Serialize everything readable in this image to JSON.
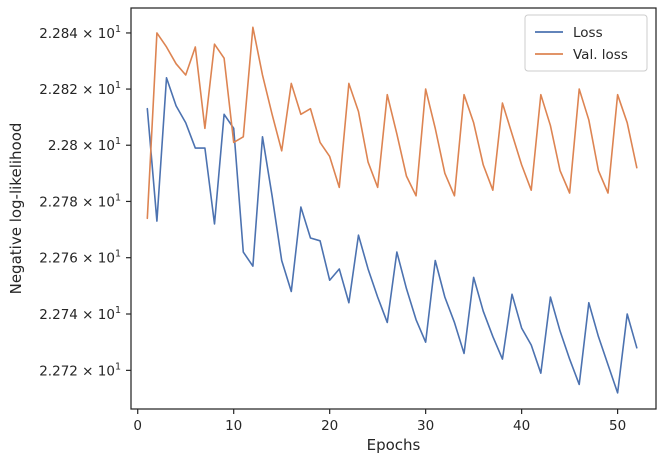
{
  "chart_data": {
    "type": "line",
    "title": "",
    "xlabel": "Epochs",
    "ylabel": "Negative log-likelihood",
    "xlim": [
      -0.7,
      54.0
    ],
    "ylim": [
      22.7063,
      22.8489
    ],
    "log_y": true,
    "x_ticks": [
      {
        "value": 0,
        "label": "0"
      },
      {
        "value": 10,
        "label": "10"
      },
      {
        "value": 20,
        "label": "20"
      },
      {
        "value": 30,
        "label": "30"
      },
      {
        "value": 40,
        "label": "40"
      },
      {
        "value": 50,
        "label": "50"
      }
    ],
    "y_ticks": [
      {
        "value": 22.72,
        "mant": "2.272",
        "exp": "1"
      },
      {
        "value": 22.74,
        "mant": "2.274",
        "exp": "1"
      },
      {
        "value": 22.76,
        "mant": "2.276",
        "exp": "1"
      },
      {
        "value": 22.78,
        "mant": "2.278",
        "exp": "1"
      },
      {
        "value": 22.8,
        "mant": "2.28",
        "exp": "1"
      },
      {
        "value": 22.82,
        "mant": "2.282",
        "exp": "1"
      },
      {
        "value": 22.84,
        "mant": "2.284",
        "exp": "1"
      }
    ],
    "x": [
      1,
      2,
      3,
      4,
      5,
      6,
      7,
      8,
      9,
      10,
      11,
      12,
      13,
      14,
      15,
      16,
      17,
      18,
      19,
      20,
      21,
      22,
      23,
      24,
      25,
      26,
      27,
      28,
      29,
      30,
      31,
      32,
      33,
      34,
      35,
      36,
      37,
      38,
      39,
      40,
      41,
      42,
      43,
      44,
      45,
      46,
      47,
      48,
      49,
      50,
      51,
      52
    ],
    "series": [
      {
        "name": "Loss",
        "color": "#4c72b0",
        "values": [
          22.813,
          22.773,
          22.824,
          22.814,
          22.808,
          22.799,
          22.799,
          22.772,
          22.811,
          22.806,
          22.762,
          22.757,
          22.803,
          22.782,
          22.759,
          22.748,
          22.778,
          22.767,
          22.766,
          22.752,
          22.756,
          22.744,
          22.768,
          22.756,
          22.746,
          22.737,
          22.762,
          22.749,
          22.738,
          22.73,
          22.759,
          22.746,
          22.737,
          22.726,
          22.753,
          22.741,
          22.732,
          22.724,
          22.747,
          22.735,
          22.729,
          22.719,
          22.746,
          22.734,
          22.724,
          22.715,
          22.744,
          22.732,
          22.722,
          22.712,
          22.74,
          22.728
        ]
      },
      {
        "name": "Val. loss",
        "color": "#dd8452",
        "values": [
          22.774,
          22.84,
          22.835,
          22.829,
          22.825,
          22.835,
          22.806,
          22.836,
          22.831,
          22.801,
          22.803,
          22.842,
          22.825,
          22.811,
          22.798,
          22.822,
          22.811,
          22.813,
          22.801,
          22.796,
          22.785,
          22.822,
          22.812,
          22.794,
          22.785,
          22.818,
          22.804,
          22.789,
          22.782,
          22.82,
          22.806,
          22.79,
          22.782,
          22.818,
          22.808,
          22.793,
          22.784,
          22.815,
          22.804,
          22.793,
          22.784,
          22.818,
          22.807,
          22.791,
          22.783,
          22.82,
          22.809,
          22.791,
          22.783,
          22.818,
          22.808,
          22.792
        ]
      }
    ],
    "legend": {
      "position": "top-right",
      "entries": [
        "Loss",
        "Val. loss"
      ]
    },
    "grid": false
  }
}
